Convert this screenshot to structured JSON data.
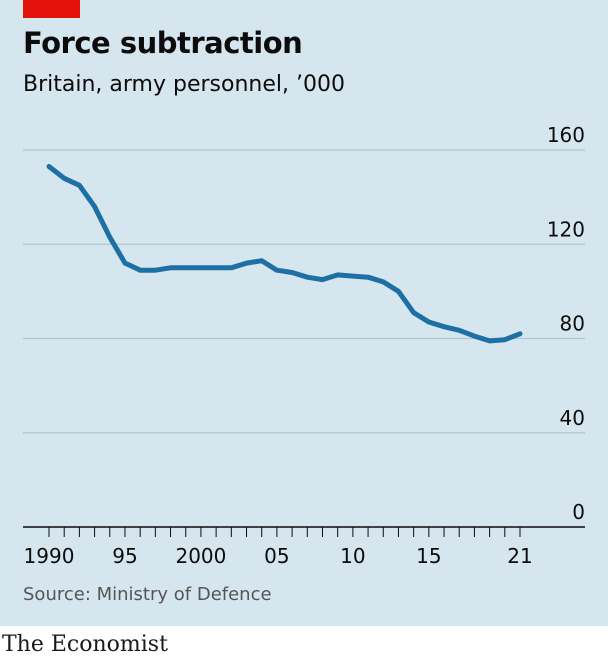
{
  "header": {
    "title": "Force subtraction",
    "subtitle": "Britain, army personnel, ’000"
  },
  "footer": {
    "source": "Source: Ministry of Defence",
    "brand": "The Economist"
  },
  "colors": {
    "background": "#d6e6ef",
    "line": "#1e6fa3",
    "accent": "#e3120b",
    "grid": "#b2c4d0"
  },
  "chart_data": {
    "type": "line",
    "title": "Force subtraction",
    "subtitle": "Britain, army personnel, ’000",
    "xlabel": "",
    "ylabel": "",
    "xlim": [
      1990,
      2021
    ],
    "ylim": [
      0,
      160
    ],
    "y_ticks": [
      0,
      40,
      80,
      120,
      160
    ],
    "y_tick_labels": [
      "0",
      "40",
      "80",
      "120",
      "160"
    ],
    "x_ticks": [
      1990,
      1995,
      2000,
      2005,
      2010,
      2015,
      2021
    ],
    "x_tick_labels": [
      "1990",
      "95",
      "2000",
      "05",
      "10",
      "15",
      "21"
    ],
    "grid": "horizontal",
    "series": [
      {
        "x": [
          1990,
          1991,
          1992,
          1993,
          1994,
          1995,
          1996,
          1997,
          1998,
          1999,
          2000,
          2001,
          2002,
          2003,
          2004,
          2005,
          2006,
          2007,
          2008,
          2009,
          2010,
          2011,
          2012,
          2013,
          2014,
          2015,
          2016,
          2017,
          2018,
          2019,
          2020,
          2021
        ],
        "values": [
          153,
          148,
          145,
          136,
          123,
          112,
          109,
          109,
          110,
          110,
          110,
          110,
          110,
          112,
          113,
          109,
          108,
          106,
          105,
          107,
          106.5,
          106,
          104,
          100,
          91,
          87,
          85,
          83.5,
          81,
          79,
          79.5,
          82
        ]
      }
    ]
  }
}
